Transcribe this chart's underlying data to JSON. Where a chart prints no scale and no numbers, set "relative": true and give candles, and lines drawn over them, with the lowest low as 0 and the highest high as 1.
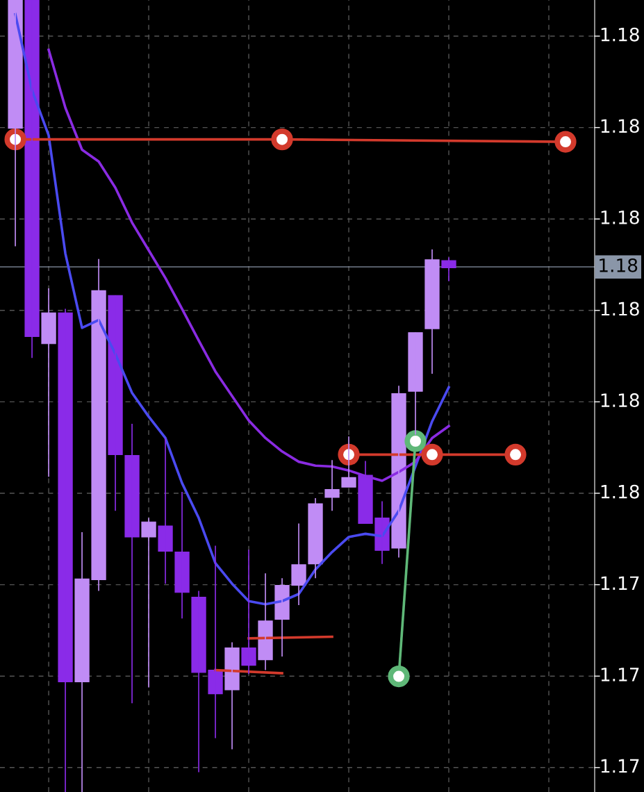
{
  "chart_data": {
    "type": "candlestick",
    "relative": true,
    "categories": [
      null,
      null,
      null,
      null,
      null,
      null,
      null,
      null,
      null,
      null,
      null,
      null,
      null,
      null,
      null,
      null,
      null,
      null,
      null,
      null,
      null,
      null,
      null,
      null,
      null,
      null,
      null,
      null,
      null,
      null,
      null,
      null,
      null,
      null,
      null
    ],
    "ohlc": [
      [
        0.838,
        1,
        0.689,
        1
      ],
      [
        1,
        1,
        0.548,
        0.575
      ],
      [
        0.566,
        0.636,
        0.398,
        0.605
      ],
      [
        0.605,
        0.61,
        0,
        0.139
      ],
      [
        0.139,
        0.328,
        0,
        0.269
      ],
      [
        0.268,
        0.673,
        0.254,
        0.633
      ],
      [
        0.627,
        0.627,
        0.355,
        0.426
      ],
      [
        0.425,
        0.465,
        0.112,
        0.322
      ],
      [
        0.322,
        0.346,
        0.132,
        0.341
      ],
      [
        0.336,
        0.447,
        0.263,
        0.304
      ],
      [
        0.303,
        0.379,
        0.219,
        0.252
      ],
      [
        0.246,
        0.254,
        0.025,
        0.151
      ],
      [
        0.154,
        0.311,
        0.068,
        0.124
      ],
      [
        0.129,
        0.189,
        0.054,
        0.182
      ],
      [
        0.182,
        0.306,
        0.149,
        0.16
      ],
      [
        0.167,
        0.276,
        0.154,
        0.216
      ],
      [
        0.218,
        0.27,
        0.171,
        0.261
      ],
      [
        0.261,
        0.339,
        0.236,
        0.287
      ],
      [
        0.288,
        0.371,
        0.27,
        0.364
      ],
      [
        0.372,
        0.419,
        0.355,
        0.382
      ],
      [
        0.385,
        0.449,
        0.385,
        0.397
      ],
      [
        0.4,
        0.418,
        0.339,
        0.339
      ],
      [
        0.346,
        0.367,
        0.288,
        0.305
      ],
      [
        0.308,
        0.513,
        0.296,
        0.503
      ],
      [
        0.506,
        0.58,
        0.451,
        0.58
      ],
      [
        0.585,
        0.685,
        0.528,
        0.672
      ],
      [
        0.671,
        0.675,
        0.645,
        0.662
      ],
      null,
      null,
      null,
      null,
      null,
      null,
      null,
      null
    ],
    "colors": [
      "#c08cf5",
      "#8a2be8",
      "#c08cf5",
      "#8a2be8",
      "#c08cf5",
      "#c08cf5",
      "#8a2be8",
      "#8a2be8",
      "#c08cf5",
      "#8a2be8",
      "#8a2be8",
      "#8a2be8",
      "#8a2be8",
      "#c08cf5",
      "#8a2be8",
      "#c08cf5",
      "#c08cf5",
      "#c08cf5",
      "#c08cf5",
      "#c08cf5",
      "#c08cf5",
      "#8a2be8",
      "#8a2be8",
      "#c08cf5",
      "#c08cf5",
      "#c08cf5",
      "#8a2be8",
      null,
      null,
      null,
      null,
      null,
      null,
      null,
      null
    ],
    "series": [
      {
        "type": "line",
        "color": "#4a4af0",
        "values": [
          0.982,
          0.886,
          0.829,
          0.68,
          0.586,
          0.596,
          0.553,
          0.504,
          0.474,
          0.447,
          0.39,
          0.346,
          0.289,
          0.263,
          0.241,
          0.237,
          0.241,
          0.25,
          0.281,
          0.303,
          0.322,
          0.326,
          0.323,
          0.355,
          0.411,
          0.468,
          0.511,
          null,
          null,
          null,
          null,
          null,
          null,
          null,
          null
        ]
      },
      {
        "type": "line",
        "color": "#8a2be2",
        "values": [
          null,
          null,
          0.937,
          0.864,
          0.811,
          0.796,
          0.763,
          0.719,
          0.684,
          0.649,
          0.61,
          0.57,
          0.531,
          0.5,
          0.469,
          0.447,
          0.43,
          0.417,
          0.412,
          0.411,
          0.406,
          0.399,
          0.393,
          0.404,
          0.417,
          0.447,
          0.462,
          null,
          null,
          null,
          null,
          null,
          null,
          null,
          null
        ]
      },
      {
        "type": "line",
        "color": "#d33a2c",
        "marker": "circle",
        "values": [
          0.824,
          null,
          null,
          null,
          null,
          null,
          null,
          null,
          null,
          null,
          null,
          null,
          null,
          null,
          null,
          null,
          0.824,
          null,
          null,
          null,
          null,
          null,
          null,
          null,
          null,
          null,
          null,
          null,
          null,
          null,
          null,
          null,
          null,
          0.821,
          null
        ]
      },
      {
        "type": "line",
        "color": "#d33a2c",
        "marker": "circle",
        "values": [
          null,
          null,
          null,
          null,
          null,
          null,
          null,
          null,
          null,
          null,
          null,
          null,
          null,
          null,
          null,
          null,
          null,
          null,
          null,
          null,
          0.426,
          null,
          null,
          null,
          null,
          0.426,
          null,
          null,
          null,
          null,
          0.426,
          null,
          null,
          null,
          null
        ]
      },
      {
        "type": "line",
        "color": "#d33a2c",
        "values": [
          null,
          null,
          null,
          null,
          null,
          null,
          null,
          null,
          null,
          null,
          null,
          null,
          0.154,
          null,
          null,
          null,
          0.15,
          null,
          null,
          null,
          null,
          null,
          null,
          null,
          null,
          null,
          null,
          null,
          null,
          null,
          null,
          null,
          null,
          null,
          null
        ]
      },
      {
        "type": "line",
        "color": "#d33a2c",
        "values": [
          null,
          null,
          null,
          null,
          null,
          null,
          null,
          null,
          null,
          null,
          null,
          null,
          null,
          null,
          0.194,
          null,
          null,
          null,
          null,
          0.196,
          null,
          null,
          null,
          null,
          null,
          null,
          null,
          null,
          null,
          null,
          null,
          null,
          null,
          null,
          null
        ]
      },
      {
        "type": "line",
        "color": "#5fb878",
        "marker": "circle",
        "values": [
          null,
          null,
          null,
          null,
          null,
          null,
          null,
          null,
          null,
          null,
          null,
          null,
          null,
          null,
          null,
          null,
          null,
          null,
          null,
          null,
          null,
          null,
          null,
          0.146,
          0.443,
          null,
          null,
          null,
          null,
          null,
          null,
          null,
          null,
          null,
          null
        ]
      }
    ],
    "ref_lines": [
      {
        "axis": "y",
        "value": 0.663,
        "color": "#8a96a8",
        "line_style": "solid"
      }
    ],
    "annotations": [
      "1.18",
      "1.18",
      "1.18",
      "1.18",
      "1.18",
      "1.18",
      "1.17",
      "1.17",
      "1.17",
      "1.18"
    ],
    "grid": true
  }
}
